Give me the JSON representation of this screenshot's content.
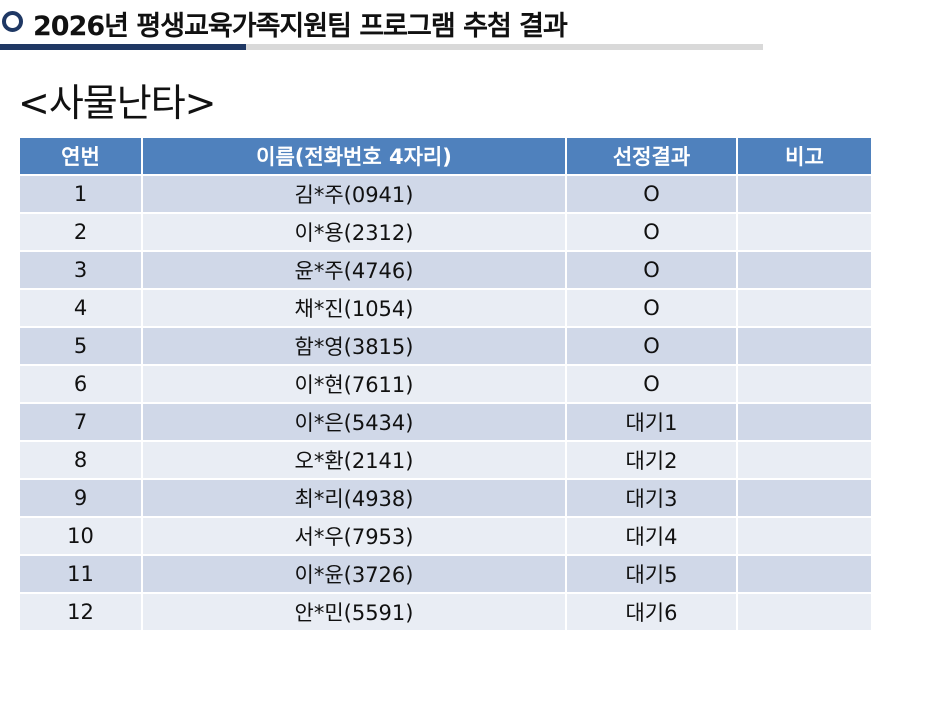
{
  "header": {
    "title": "2026년 평생교육가족지원팀 프로그램  추첨 결과"
  },
  "section": {
    "title": "<사물난타>"
  },
  "table": {
    "columns": [
      "연번",
      "이름(전화번호 4자리)",
      "선정결과",
      "비고"
    ],
    "rows": [
      {
        "no": "1",
        "name": "김*주(0941)",
        "result": "O",
        "note": ""
      },
      {
        "no": "2",
        "name": "이*용(2312)",
        "result": "O",
        "note": ""
      },
      {
        "no": "3",
        "name": "윤*주(4746)",
        "result": "O",
        "note": ""
      },
      {
        "no": "4",
        "name": "채*진(1054)",
        "result": "O",
        "note": ""
      },
      {
        "no": "5",
        "name": "함*영(3815)",
        "result": "O",
        "note": ""
      },
      {
        "no": "6",
        "name": "이*현(7611)",
        "result": "O",
        "note": ""
      },
      {
        "no": "7",
        "name": "이*은(5434)",
        "result": "대기1",
        "note": ""
      },
      {
        "no": "8",
        "name": "오*환(2141)",
        "result": "대기2",
        "note": ""
      },
      {
        "no": "9",
        "name": "최*리(4938)",
        "result": "대기3",
        "note": ""
      },
      {
        "no": "10",
        "name": "서*우(7953)",
        "result": "대기4",
        "note": ""
      },
      {
        "no": "11",
        "name": "이*윤(3726)",
        "result": "대기5",
        "note": ""
      },
      {
        "no": "12",
        "name": "안*민(5591)",
        "result": "대기6",
        "note": ""
      }
    ]
  },
  "colors": {
    "header_bg": "#4f81bd",
    "row_odd": "#d0d8e8",
    "row_even": "#e9edf4",
    "accent_dark": "#1f3864"
  },
  "icons": {
    "bullet": "circle-bullet-icon"
  }
}
